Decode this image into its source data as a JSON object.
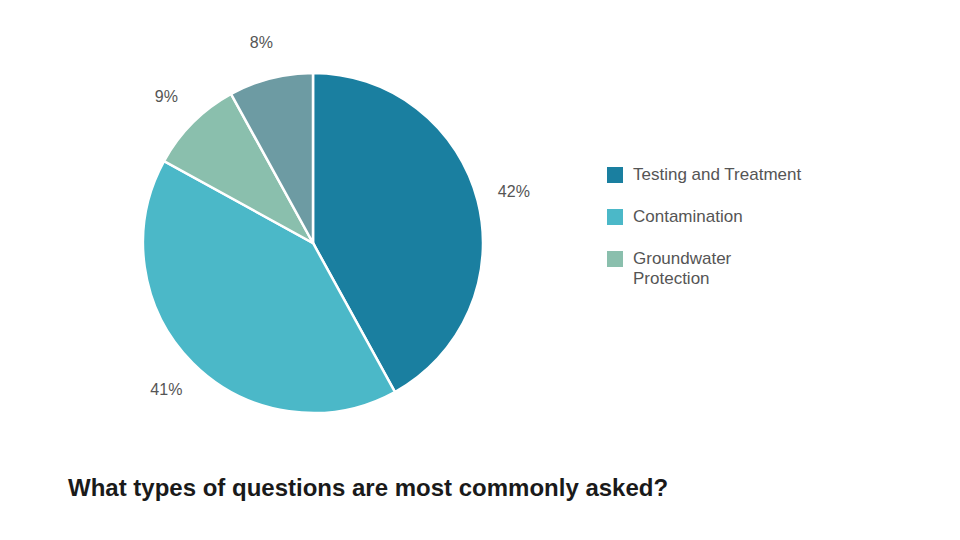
{
  "chart_data": {
    "type": "pie",
    "title": "What types of questions are most commonly asked?",
    "categories": [
      "Testing and Treatment",
      "Contamination",
      "Groundwater\nProtection",
      null
    ],
    "values": [
      42,
      41,
      9,
      8
    ],
    "value_labels": [
      "42%",
      "41%",
      "9%",
      "8%"
    ],
    "colors": [
      "#1a7fa0",
      "#4bb8c8",
      "#8abfad",
      "#6d9ba3"
    ],
    "data_labels": true,
    "legend": "right"
  }
}
